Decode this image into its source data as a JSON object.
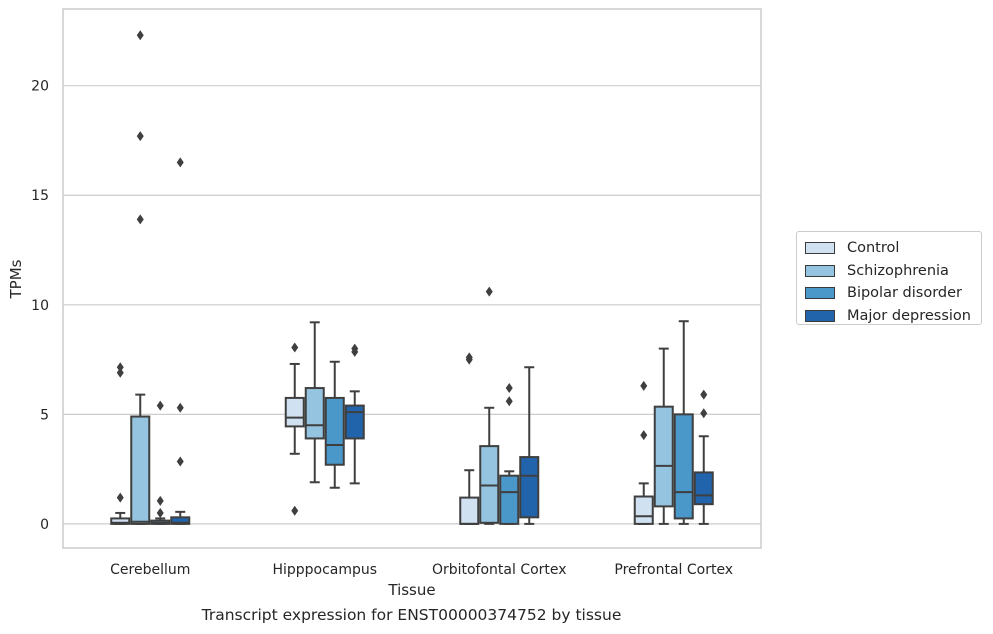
{
  "caption": "Transcript expression for ENST00000374752 by tissue",
  "chart_data": {
    "type": "box",
    "xlabel": "Tissue",
    "ylabel": "TPMs",
    "ylim": [
      -1.1,
      23.5
    ],
    "yticks": [
      0,
      5,
      10,
      15,
      20
    ],
    "grid": "horizontal",
    "legend_position": "outside-right",
    "categories": [
      "Cerebellum",
      "Hipppocampus",
      "Orbitofontal Cortex",
      "Prefrontal Cortex"
    ],
    "series": [
      {
        "name": "Control",
        "color": "#d0e1f2",
        "boxes": [
          {
            "whislo": 0,
            "q1": 0,
            "med": 0.05,
            "q3": 0.25,
            "whishi": 0.5,
            "fliers": [
              1.2,
              6.9,
              7.15
            ]
          },
          {
            "whislo": 3.2,
            "q1": 4.45,
            "med": 4.85,
            "q3": 5.75,
            "whishi": 7.3,
            "fliers": [
              0.6,
              8.05
            ]
          },
          {
            "whislo": 0,
            "q1": 0,
            "med": 0,
            "q3": 1.2,
            "whishi": 2.45,
            "fliers": [
              7.5,
              7.6
            ]
          },
          {
            "whislo": 0,
            "q1": 0,
            "med": 0.35,
            "q3": 1.25,
            "whishi": 1.85,
            "fliers": [
              4.05,
              6.3
            ]
          }
        ]
      },
      {
        "name": "Schizophrenia",
        "color": "#94c4df",
        "boxes": [
          {
            "whislo": 0,
            "q1": 0,
            "med": 0.1,
            "q3": 4.9,
            "whishi": 5.9,
            "fliers": [
              13.9,
              17.7,
              22.3
            ]
          },
          {
            "whislo": 1.9,
            "q1": 3.9,
            "med": 4.5,
            "q3": 6.2,
            "whishi": 9.2,
            "fliers": []
          },
          {
            "whislo": 0,
            "q1": 0.05,
            "med": 1.75,
            "q3": 3.55,
            "whishi": 5.3,
            "fliers": [
              10.6
            ]
          },
          {
            "whislo": 0,
            "q1": 0.8,
            "med": 2.65,
            "q3": 5.35,
            "whishi": 8.0,
            "fliers": []
          }
        ]
      },
      {
        "name": "Bipolar disorder",
        "color": "#4a98c9",
        "boxes": [
          {
            "whislo": 0,
            "q1": 0,
            "med": 0.05,
            "q3": 0.15,
            "whishi": 0.25,
            "fliers": [
              0.5,
              1.05,
              5.4
            ]
          },
          {
            "whislo": 1.65,
            "q1": 2.7,
            "med": 3.6,
            "q3": 5.75,
            "whishi": 7.4,
            "fliers": []
          },
          {
            "whislo": 0,
            "q1": 0,
            "med": 1.45,
            "q3": 2.2,
            "whishi": 2.4,
            "fliers": [
              5.6,
              6.2
            ]
          },
          {
            "whislo": 0,
            "q1": 0.25,
            "med": 1.45,
            "q3": 5.0,
            "whishi": 9.25,
            "fliers": []
          }
        ]
      },
      {
        "name": "Major depression",
        "color": "#2164ab",
        "boxes": [
          {
            "whislo": 0,
            "q1": 0,
            "med": 0.05,
            "q3": 0.3,
            "whishi": 0.55,
            "fliers": [
              2.85,
              5.3,
              16.5
            ]
          },
          {
            "whislo": 1.85,
            "q1": 3.9,
            "med": 5.1,
            "q3": 5.4,
            "whishi": 6.05,
            "fliers": [
              7.85,
              8.0
            ]
          },
          {
            "whislo": 0,
            "q1": 0.3,
            "med": 2.2,
            "q3": 3.05,
            "whishi": 7.15,
            "fliers": []
          },
          {
            "whislo": 0,
            "q1": 0.9,
            "med": 1.3,
            "q3": 2.35,
            "whishi": 4.0,
            "fliers": [
              5.05,
              5.9
            ]
          }
        ]
      }
    ]
  }
}
